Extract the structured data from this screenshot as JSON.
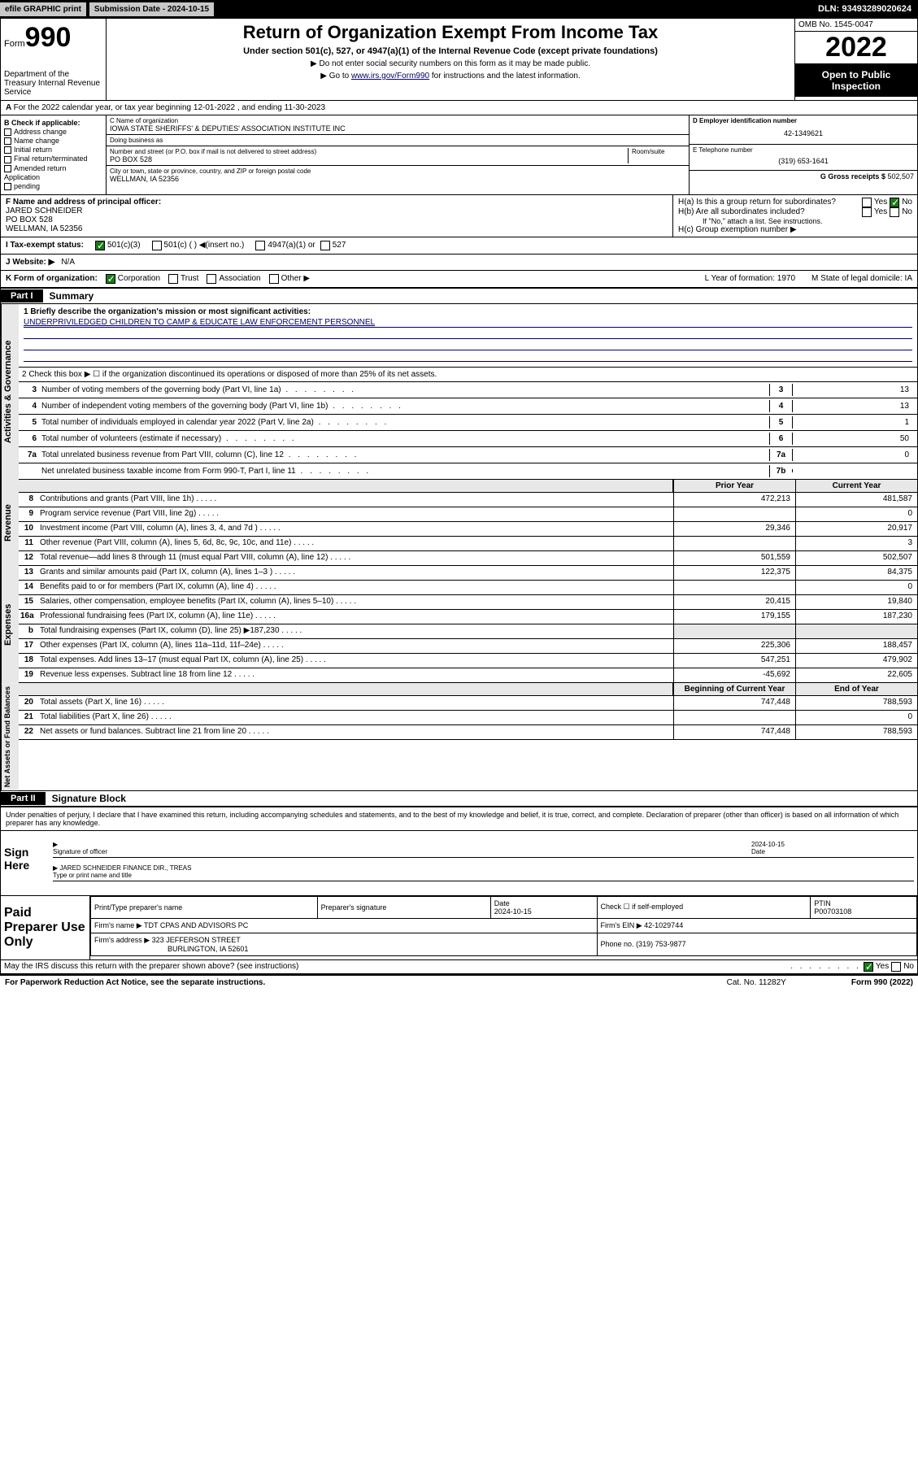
{
  "topbar": {
    "efile": "efile GRAPHIC print",
    "subdate_lbl": "Submission Date - ",
    "subdate": "2024-10-15",
    "dln": "DLN: 93493289020624"
  },
  "header": {
    "form_prefix": "Form",
    "form_num": "990",
    "dept": "Department of the Treasury\nInternal Revenue Service",
    "title": "Return of Organization Exempt From Income Tax",
    "sub1": "Under section 501(c), 527, or 4947(a)(1) of the Internal Revenue Code (except private foundations)",
    "sub2": "▶ Do not enter social security numbers on this form as it may be made public.",
    "sub3_pre": "▶ Go to ",
    "sub3_link": "www.irs.gov/Form990",
    "sub3_post": " for instructions and the latest information.",
    "omb": "OMB No. 1545-0047",
    "year": "2022",
    "open": "Open to Public Inspection"
  },
  "row_a": {
    "text": "For the 2022 calendar year, or tax year beginning 12-01-2022   , and ending 11-30-2023"
  },
  "col_b": {
    "hdr": "B Check if applicable:",
    "items": [
      "Address change",
      "Name change",
      "Initial return",
      "Final return/terminated",
      "Amended return",
      "Application",
      "pending"
    ]
  },
  "col_c": {
    "name_lbl": "C Name of organization",
    "name": "IOWA STATE SHERIFFS' & DEPUTIES' ASSOCIATION INSTITUTE INC",
    "dba_lbl": "Doing business as",
    "addr_lbl": "Number and street (or P.O. box if mail is not delivered to street address)",
    "room_lbl": "Room/suite",
    "addr": "PO BOX 528",
    "city_lbl": "City or town, state or province, country, and ZIP or foreign postal code",
    "city": "WELLMAN, IA  52356"
  },
  "col_right": {
    "d_lbl": "D Employer identification number",
    "d_val": "42-1349621",
    "e_lbl": "E Telephone number",
    "e_val": "(319) 653-1641",
    "g_lbl": "G Gross receipts $ ",
    "g_val": "502,507"
  },
  "principal": {
    "f_lbl": "F Name and address of principal officer:",
    "f_name": "JARED SCHNEIDER",
    "f_addr1": "PO BOX 528",
    "f_addr2": "WELLMAN, IA  52356",
    "ha": "H(a)  Is this a group return for subordinates?",
    "hb": "H(b)  Are all subordinates included?",
    "hb_note": "If \"No,\" attach a list. See instructions.",
    "hc": "H(c)  Group exemption number ▶",
    "yes": "Yes",
    "no": "No"
  },
  "tax_row": {
    "i": "I   Tax-exempt status:",
    "opt1": "501(c)(3)",
    "opt2": "501(c) (  ) ◀(insert no.)",
    "opt3": "4947(a)(1) or",
    "opt4": "527"
  },
  "web_row": {
    "j": "J   Website: ▶",
    "val": "N/A"
  },
  "k_row": {
    "k": "K Form of organization:",
    "opts": [
      "Corporation",
      "Trust",
      "Association",
      "Other ▶"
    ],
    "l": "L Year of formation: 1970",
    "m": "M State of legal domicile: IA"
  },
  "part1": {
    "hdr": "Part I",
    "title": "Summary",
    "line1_lbl": "1   Briefly describe the organization's mission or most significant activities:",
    "line1_val": "UNDERPRIVILEDGED CHILDREN TO CAMP & EDUCATE LAW ENFORCEMENT PERSONNEL",
    "line2": "2   Check this box ▶ ☐  if the organization discontinued its operations or disposed of more than 25% of its net assets.",
    "gov_lines": [
      {
        "n": "3",
        "t": "Number of voting members of the governing body (Part VI, line 1a)",
        "box": "3",
        "v": "13"
      },
      {
        "n": "4",
        "t": "Number of independent voting members of the governing body (Part VI, line 1b)",
        "box": "4",
        "v": "13"
      },
      {
        "n": "5",
        "t": "Total number of individuals employed in calendar year 2022 (Part V, line 2a)",
        "box": "5",
        "v": "1"
      },
      {
        "n": "6",
        "t": "Total number of volunteers (estimate if necessary)",
        "box": "6",
        "v": "50"
      },
      {
        "n": "7a",
        "t": "Total unrelated business revenue from Part VIII, column (C), line 12",
        "box": "7a",
        "v": "0"
      },
      {
        "n": "",
        "t": "Net unrelated business taxable income from Form 990-T, Part I, line 11",
        "box": "7b",
        "v": ""
      }
    ],
    "col_hdrs": {
      "prior": "Prior Year",
      "current": "Current Year",
      "boy": "Beginning of Current Year",
      "eoy": "End of Year"
    },
    "vtabs": {
      "gov": "Activities & Governance",
      "rev": "Revenue",
      "exp": "Expenses",
      "net": "Net Assets or Fund Balances"
    },
    "rev_lines": [
      {
        "n": "8",
        "t": "Contributions and grants (Part VIII, line 1h)",
        "v1": "472,213",
        "v2": "481,587"
      },
      {
        "n": "9",
        "t": "Program service revenue (Part VIII, line 2g)",
        "v1": "",
        "v2": "0"
      },
      {
        "n": "10",
        "t": "Investment income (Part VIII, column (A), lines 3, 4, and 7d )",
        "v1": "29,346",
        "v2": "20,917"
      },
      {
        "n": "11",
        "t": "Other revenue (Part VIII, column (A), lines 5, 6d, 8c, 9c, 10c, and 11e)",
        "v1": "",
        "v2": "3"
      },
      {
        "n": "12",
        "t": "Total revenue—add lines 8 through 11 (must equal Part VIII, column (A), line 12)",
        "v1": "501,559",
        "v2": "502,507"
      }
    ],
    "exp_lines": [
      {
        "n": "13",
        "t": "Grants and similar amounts paid (Part IX, column (A), lines 1–3 )",
        "v1": "122,375",
        "v2": "84,375"
      },
      {
        "n": "14",
        "t": "Benefits paid to or for members (Part IX, column (A), line 4)",
        "v1": "",
        "v2": "0"
      },
      {
        "n": "15",
        "t": "Salaries, other compensation, employee benefits (Part IX, column (A), lines 5–10)",
        "v1": "20,415",
        "v2": "19,840"
      },
      {
        "n": "16a",
        "t": "Professional fundraising fees (Part IX, column (A), line 11e)",
        "v1": "179,155",
        "v2": "187,230"
      },
      {
        "n": "b",
        "t": "Total fundraising expenses (Part IX, column (D), line 25) ▶187,230",
        "v1": "",
        "v2": "",
        "shade": true
      },
      {
        "n": "17",
        "t": "Other expenses (Part IX, column (A), lines 11a–11d, 11f–24e)",
        "v1": "225,306",
        "v2": "188,457"
      },
      {
        "n": "18",
        "t": "Total expenses. Add lines 13–17 (must equal Part IX, column (A), line 25)",
        "v1": "547,251",
        "v2": "479,902"
      },
      {
        "n": "19",
        "t": "Revenue less expenses. Subtract line 18 from line 12",
        "v1": "-45,692",
        "v2": "22,605"
      }
    ],
    "net_lines": [
      {
        "n": "20",
        "t": "Total assets (Part X, line 16)",
        "v1": "747,448",
        "v2": "788,593"
      },
      {
        "n": "21",
        "t": "Total liabilities (Part X, line 26)",
        "v1": "",
        "v2": "0"
      },
      {
        "n": "22",
        "t": "Net assets or fund balances. Subtract line 21 from line 20",
        "v1": "747,448",
        "v2": "788,593"
      }
    ]
  },
  "part2": {
    "hdr": "Part II",
    "title": "Signature Block",
    "penalties": "Under penalties of perjury, I declare that I have examined this return, including accompanying schedules and statements, and to the best of my knowledge and belief, it is true, correct, and complete. Declaration of preparer (other than officer) is based on all information of which preparer has any knowledge.",
    "sign_here": "Sign Here",
    "sig_officer": "Signature of officer",
    "sig_date": "2024-10-15",
    "date_lbl": "Date",
    "name_title": "JARED SCHNEIDER FINANCE DIR., TREAS",
    "name_title_lbl": "Type or print name and title",
    "paid": "Paid Preparer Use Only",
    "pp_name_lbl": "Print/Type preparer's name",
    "pp_sig_lbl": "Preparer's signature",
    "pp_date_lbl": "Date",
    "pp_date": "2024-10-15",
    "pp_check": "Check ☐ if self-employed",
    "ptin_lbl": "PTIN",
    "ptin": "P00703108",
    "firm_name_lbl": "Firm's name   ▶",
    "firm_name": "TDT CPAS AND ADVISORS PC",
    "firm_ein_lbl": "Firm's EIN ▶",
    "firm_ein": "42-1029744",
    "firm_addr_lbl": "Firm's address ▶",
    "firm_addr": "323 JEFFERSON STREET",
    "firm_city": "BURLINGTON, IA  52601",
    "firm_phone_lbl": "Phone no.",
    "firm_phone": "(319) 753-9877",
    "may_irs": "May the IRS discuss this return with the preparer shown above? (see instructions)"
  },
  "footer": {
    "paperwork": "For Paperwork Reduction Act Notice, see the separate instructions.",
    "cat": "Cat. No. 11282Y",
    "form": "Form 990 (2022)"
  },
  "colors": {
    "bg": "#ffffff",
    "black": "#000000",
    "link": "#000066",
    "shade": "#e8e8e8",
    "green": "#1a7a1a"
  }
}
